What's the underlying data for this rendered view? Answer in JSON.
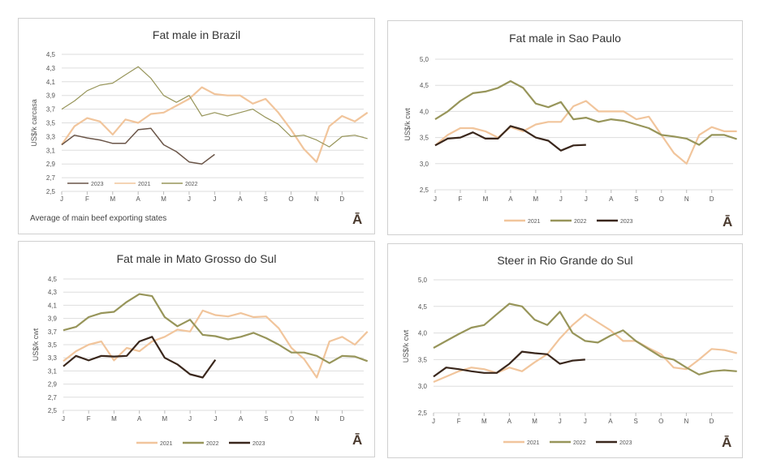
{
  "colors": {
    "2021": "#f1c59c",
    "2022": "#97955a",
    "2023": "#3a271c",
    "2023_brazil": "#6a5548",
    "grid": "#dddddd"
  },
  "logo_glyph": "Ā",
  "chart_data": [
    {
      "type": "line",
      "title": "Fat male in Brazil",
      "ylabel": "US$/k carcasa",
      "footnote": "Average  of main beef exporting states",
      "ylim": [
        2.5,
        4.5
      ],
      "yticks": [
        "2,5",
        "2,7",
        "2,9",
        "3,1",
        "3,3",
        "3,5",
        "3,7",
        "3,9",
        "4,1",
        "4,3",
        "4,5"
      ],
      "xticks": [
        "J",
        "F",
        "M",
        "A",
        "M",
        "J",
        "J",
        "A",
        "S",
        "O",
        "N",
        "D"
      ],
      "grid": true,
      "legend_placement": "bottom-left inside",
      "legend_order": [
        "2023",
        "2021",
        "2022"
      ],
      "series": [
        {
          "name": "2021",
          "values": [
            3.18,
            3.45,
            3.57,
            3.52,
            3.33,
            3.55,
            3.5,
            3.63,
            3.65,
            3.75,
            3.85,
            4.02,
            3.92,
            3.9,
            3.9,
            3.78,
            3.85,
            3.65,
            3.4,
            3.12,
            2.93,
            3.45,
            3.6,
            3.52,
            3.65
          ]
        },
        {
          "name": "2022",
          "values": [
            3.7,
            3.82,
            3.97,
            4.05,
            4.08,
            4.2,
            4.32,
            4.15,
            3.9,
            3.8,
            3.9,
            3.6,
            3.65,
            3.6,
            3.65,
            3.7,
            3.58,
            3.48,
            3.3,
            3.32,
            3.25,
            3.15,
            3.3,
            3.32,
            3.27
          ]
        },
        {
          "name": "2023",
          "values": [
            3.18,
            3.32,
            3.28,
            3.25,
            3.2,
            3.2,
            3.4,
            3.42,
            3.18,
            3.08,
            2.93,
            2.9,
            3.04
          ]
        }
      ]
    },
    {
      "type": "line",
      "title": "Fat male in Sao Paulo",
      "ylabel": "US$/k cwt",
      "ylim": [
        2.5,
        5.0
      ],
      "yticks": [
        "2,5",
        "3,0",
        "3,5",
        "4,0",
        "4,5",
        "5,0"
      ],
      "xticks": [
        "J",
        "F",
        "M",
        "A",
        "M",
        "J",
        "J",
        "A",
        "S",
        "O",
        "N",
        "D"
      ],
      "grid": true,
      "legend_placement": "bottom",
      "legend_order": [
        "2021",
        "2022",
        "2023"
      ],
      "series": [
        {
          "name": "2021",
          "values": [
            3.35,
            3.55,
            3.68,
            3.68,
            3.62,
            3.5,
            3.7,
            3.62,
            3.75,
            3.8,
            3.8,
            4.1,
            4.2,
            4.0,
            4.0,
            4.0,
            3.85,
            3.9,
            3.55,
            3.2,
            3.0,
            3.55,
            3.7,
            3.62,
            3.62
          ]
        },
        {
          "name": "2022",
          "values": [
            3.85,
            4.0,
            4.2,
            4.35,
            4.38,
            4.45,
            4.58,
            4.45,
            4.15,
            4.08,
            4.18,
            3.85,
            3.88,
            3.8,
            3.85,
            3.82,
            3.75,
            3.68,
            3.55,
            3.52,
            3.48,
            3.36,
            3.55,
            3.55,
            3.47
          ]
        },
        {
          "name": "2023",
          "values": [
            3.35,
            3.48,
            3.5,
            3.6,
            3.48,
            3.48,
            3.72,
            3.65,
            3.5,
            3.44,
            3.25,
            3.35,
            3.36
          ]
        }
      ]
    },
    {
      "type": "line",
      "title": "Fat male in Mato Grosso do Sul",
      "ylabel": "US$/k cwt",
      "ylim": [
        2.5,
        4.5
      ],
      "yticks": [
        "2,5",
        "2,7",
        "2,9",
        "3,1",
        "3,3",
        "3,5",
        "3,7",
        "3,9",
        "4,1",
        "4,3",
        "4,5"
      ],
      "xticks": [
        "J",
        "F",
        "M",
        "A",
        "M",
        "J",
        "J",
        "A",
        "S",
        "O",
        "N",
        "D"
      ],
      "grid": true,
      "legend_placement": "bottom",
      "legend_order": [
        "2021",
        "2022",
        "2023"
      ],
      "series": [
        {
          "name": "2021",
          "values": [
            3.25,
            3.4,
            3.5,
            3.55,
            3.26,
            3.45,
            3.4,
            3.55,
            3.62,
            3.73,
            3.7,
            4.02,
            3.95,
            3.93,
            3.98,
            3.92,
            3.93,
            3.75,
            3.45,
            3.28,
            3.0,
            3.55,
            3.62,
            3.5,
            3.7
          ]
        },
        {
          "name": "2022",
          "values": [
            3.72,
            3.77,
            3.92,
            3.98,
            4.0,
            4.15,
            4.27,
            4.24,
            3.92,
            3.78,
            3.88,
            3.65,
            3.63,
            3.58,
            3.62,
            3.68,
            3.6,
            3.5,
            3.38,
            3.38,
            3.33,
            3.22,
            3.33,
            3.32,
            3.25
          ]
        },
        {
          "name": "2023",
          "values": [
            3.17,
            3.33,
            3.26,
            3.33,
            3.32,
            3.33,
            3.55,
            3.62,
            3.3,
            3.2,
            3.05,
            3.0,
            3.27
          ]
        }
      ]
    },
    {
      "type": "line",
      "title": "Steer  in Rio Grande do Sul",
      "ylabel": "US$/k cwt",
      "ylim": [
        2.5,
        5.0
      ],
      "yticks": [
        "2,5",
        "3,0",
        "3,5",
        "4,0",
        "4,5",
        "5,0"
      ],
      "xticks": [
        "J",
        "F",
        "M",
        "A",
        "M",
        "J",
        "J",
        "A",
        "S",
        "O",
        "N",
        "D"
      ],
      "grid": true,
      "legend_placement": "bottom",
      "legend_order": [
        "2021",
        "2022",
        "2023"
      ],
      "series": [
        {
          "name": "2021",
          "values": [
            3.08,
            3.18,
            3.28,
            3.35,
            3.32,
            3.25,
            3.35,
            3.28,
            3.45,
            3.6,
            3.9,
            4.15,
            4.35,
            4.2,
            4.05,
            3.85,
            3.85,
            3.72,
            3.6,
            3.35,
            3.32,
            3.5,
            3.7,
            3.68,
            3.62
          ]
        },
        {
          "name": "2022",
          "values": [
            3.72,
            3.85,
            3.98,
            4.1,
            4.15,
            4.35,
            4.55,
            4.5,
            4.25,
            4.15,
            4.4,
            4.0,
            3.85,
            3.82,
            3.95,
            4.05,
            3.85,
            3.7,
            3.55,
            3.5,
            3.35,
            3.22,
            3.28,
            3.3,
            3.28
          ]
        },
        {
          "name": "2023",
          "values": [
            3.18,
            3.35,
            3.32,
            3.28,
            3.25,
            3.25,
            3.42,
            3.65,
            3.62,
            3.6,
            3.42,
            3.48,
            3.5
          ]
        }
      ]
    }
  ]
}
